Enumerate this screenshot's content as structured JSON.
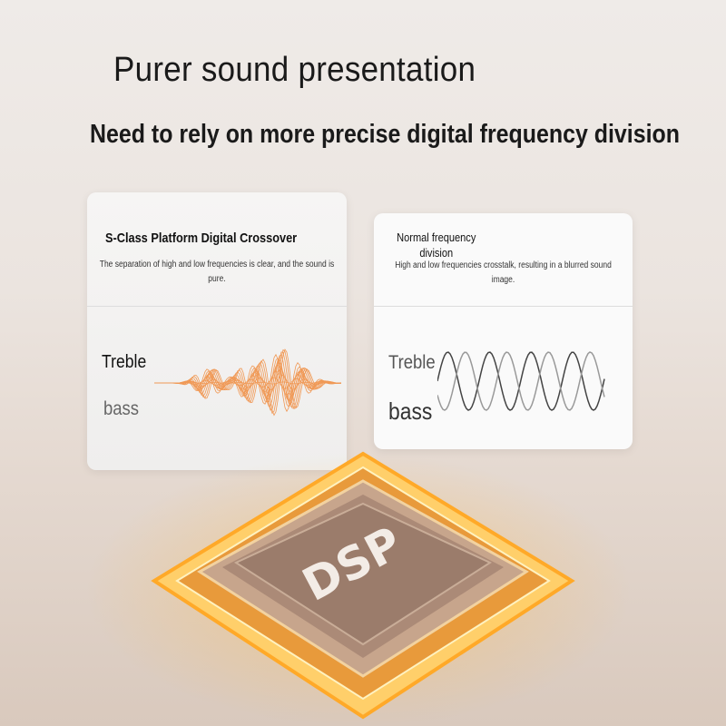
{
  "header": {
    "title": "Purer sound presentation",
    "subtitle": "Need to rely on more precise digital frequency division"
  },
  "cards": [
    {
      "title": "S-Class Platform Digital Crossover",
      "description": "The separation of high and low frequencies is clear, and the sound is pure.",
      "treble_label": "Treble",
      "bass_label": "bass",
      "wave_color": "#f08a3c"
    },
    {
      "title": "Normal frequency division",
      "description": "High and low frequencies crosstalk, resulting in a blurred sound image.",
      "treble_label": "Treble",
      "bass_label": "bass",
      "wave_color": "#666666"
    }
  ],
  "chip": {
    "label": "DSP",
    "glow_color": "#ffa928"
  }
}
